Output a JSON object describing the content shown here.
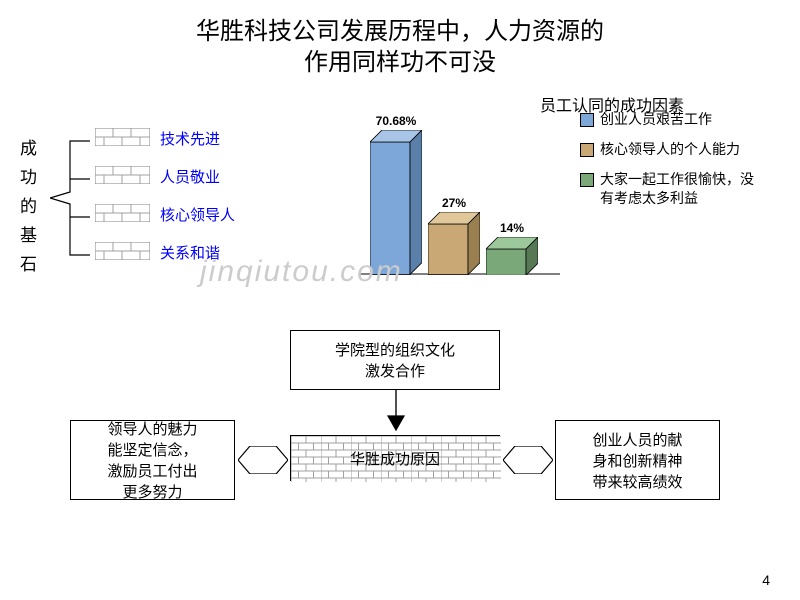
{
  "title_line1": "华胜科技公司发展历程中，人力资源的",
  "title_line2": "作用同样功不可没",
  "side_label": "成功的基石",
  "bricks": [
    {
      "label": "技术先进",
      "color": "#0000ff"
    },
    {
      "label": "人员敬业",
      "color": "#0000ff"
    },
    {
      "label": "核心领导人",
      "color": "#0000ff"
    },
    {
      "label": "关系和谐",
      "color": "#0000ff"
    }
  ],
  "chart": {
    "title": "员工认同的成功因素",
    "type": "bar3d",
    "max": 80,
    "bars": [
      {
        "value": 70.68,
        "label": "70.68%",
        "fill": "#7da7d8",
        "top": "#a8c5e8",
        "side": "#5a7fa8"
      },
      {
        "value": 27,
        "label": "27%",
        "fill": "#c9a876",
        "top": "#e0c89a",
        "side": "#9a7f50"
      },
      {
        "value": 14,
        "label": "14%",
        "fill": "#7aa878",
        "top": "#9dc89b",
        "side": "#567854"
      }
    ],
    "legend": [
      {
        "color": "#7da7d8",
        "text": "创业人员艰苦工作"
      },
      {
        "color": "#c9a876",
        "text": "核心领导人的个人能力"
      },
      {
        "color": "#7aa878",
        "text": "大家一起工作很愉快，没有考虑太多利益"
      }
    ]
  },
  "watermark": "jinqiutou.com",
  "bottom": {
    "top_box": {
      "line1": "学院型的组织文化",
      "line2": "激发合作"
    },
    "left_box": {
      "line1": "领导人的魅力",
      "line2": "能坚定信念，",
      "line3": "激励员工付出",
      "line4": "更多努力"
    },
    "center_box": {
      "line1": "华胜成功原因"
    },
    "right_box": {
      "line1": "创业人员的献",
      "line2": "身和创新精神",
      "line3": "带来较高绩效"
    }
  },
  "page_number": "4",
  "colors": {
    "brick_stroke": "#808080",
    "brick_fill": "#ffffff",
    "text_black": "#000000",
    "text_blue": "#0000ff"
  }
}
